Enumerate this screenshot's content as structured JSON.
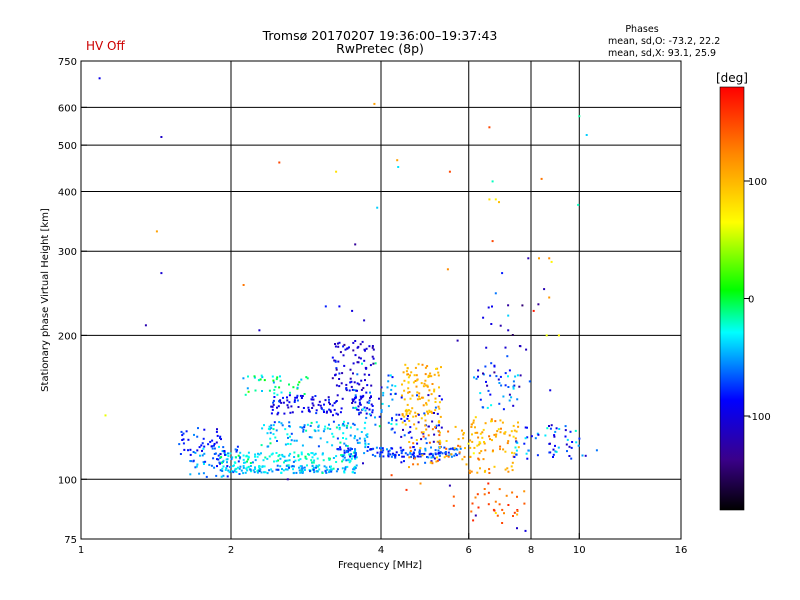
{
  "header": {
    "status": "HV Off",
    "status_color": "#cc0000",
    "title_line1": "Tromsø 20170207 19:36:00–19:37:43",
    "title_line2": "RwPretec (8p)",
    "stats_title": "Phases",
    "stats_o": "mean, sd,O: -73.2, 22.2",
    "stats_x": "mean, sd,X:  93.1, 25.9"
  },
  "colorbar": {
    "unit": "[deg]",
    "min": -180,
    "max": 180,
    "ticks": [
      {
        "value": 100,
        "label": "100"
      },
      {
        "value": 0,
        "label": "0"
      },
      {
        "value": -100,
        "label": "-100"
      }
    ]
  },
  "chart_data": {
    "type": "scatter",
    "title": "Tromsø 20170207 19:36:00–19:37:43",
    "subtitle": "RwPretec (8p)",
    "xlabel": "Frequency [MHz]",
    "ylabel": "Stationary phase Virtual Height [km]",
    "x_scale": "log",
    "y_scale": "log",
    "xlim": [
      1,
      16
    ],
    "ylim": [
      75,
      750
    ],
    "x_ticks": [
      {
        "value": 1,
        "label": "1"
      },
      {
        "value": 2,
        "label": "2"
      },
      {
        "value": 4,
        "label": "4"
      },
      {
        "value": 6,
        "label": "6"
      },
      {
        "value": 8,
        "label": "8"
      },
      {
        "value": 10,
        "label": "10"
      },
      {
        "value": 16,
        "label": "16"
      }
    ],
    "y_ticks": [
      {
        "value": 75,
        "label": "75"
      },
      {
        "value": 100,
        "label": "100"
      },
      {
        "value": 200,
        "label": "200"
      },
      {
        "value": 300,
        "label": "300"
      },
      {
        "value": 400,
        "label": "400"
      },
      {
        "value": 500,
        "label": "500"
      },
      {
        "value": 600,
        "label": "600"
      },
      {
        "value": 750,
        "label": "750"
      }
    ],
    "grid_x": [
      2,
      4,
      6,
      8,
      10
    ],
    "grid_y": [
      100,
      200,
      300,
      400,
      500,
      600
    ],
    "grid": true,
    "color_encoding": "phase_deg",
    "points": [
      [
        1.09,
        690,
        -95
      ],
      [
        1.45,
        520,
        -110
      ],
      [
        1.42,
        330,
        110
      ],
      [
        1.45,
        270,
        -105
      ],
      [
        1.35,
        210,
        -120
      ],
      [
        1.12,
        136,
        60
      ],
      [
        2.5,
        460,
        150
      ],
      [
        3.25,
        440,
        80
      ],
      [
        3.55,
        310,
        -130
      ],
      [
        3.88,
        610,
        110
      ],
      [
        3.93,
        370,
        -40
      ],
      [
        4.31,
        465,
        110
      ],
      [
        4.33,
        450,
        -35
      ],
      [
        5.5,
        440,
        150
      ],
      [
        5.45,
        275,
        120
      ],
      [
        6.6,
        545,
        150
      ],
      [
        6.7,
        420,
        -20
      ],
      [
        6.7,
        315,
        150
      ],
      [
        6.6,
        385,
        80
      ],
      [
        6.8,
        385,
        70
      ],
      [
        6.9,
        380,
        95
      ],
      [
        7.9,
        290,
        -120
      ],
      [
        8.3,
        290,
        110
      ],
      [
        8.7,
        290,
        120
      ],
      [
        8.8,
        285,
        70
      ],
      [
        8.4,
        425,
        130
      ],
      [
        10.0,
        575,
        -15
      ],
      [
        10.35,
        525,
        -40
      ],
      [
        9.95,
        375,
        -20
      ],
      [
        8.5,
        250,
        -120
      ],
      [
        8.7,
        240,
        115
      ],
      [
        7.0,
        270,
        -80
      ],
      [
        6.8,
        245,
        -60
      ],
      [
        7.2,
        220,
        -40
      ],
      [
        8.1,
        225,
        170
      ],
      [
        8.6,
        200,
        60
      ],
      [
        9.1,
        200,
        70
      ],
      [
        2.12,
        255,
        130
      ],
      [
        2.28,
        205,
        -110
      ],
      [
        3.1,
        230,
        -80
      ],
      [
        3.3,
        230,
        -90
      ],
      [
        3.5,
        225,
        -100
      ],
      [
        3.7,
        215,
        -110
      ],
      [
        5.7,
        195,
        -120
      ],
      [
        7.6,
        190,
        -130
      ],
      [
        2.6,
        100,
        -120
      ],
      [
        3.68,
        108,
        -110
      ],
      [
        4.2,
        102,
        150
      ],
      [
        4.5,
        95,
        160
      ],
      [
        4.8,
        98,
        120
      ],
      [
        5.6,
        92,
        140
      ],
      [
        5.6,
        88,
        150
      ],
      [
        6.2,
        84,
        -120
      ],
      [
        6.8,
        85,
        80
      ],
      [
        7.0,
        81,
        150
      ],
      [
        7.5,
        79,
        -110
      ],
      [
        7.8,
        78,
        -100
      ],
      [
        5.5,
        97,
        -120
      ],
      [
        10.3,
        112,
        -110
      ],
      [
        10.85,
        115,
        -60
      ]
    ],
    "clusters": [
      {
        "x0": 1.9,
        "x1": 3.6,
        "h0": 103,
        "h1": 107,
        "n": 150,
        "phase": -45,
        "spread": 35
      },
      {
        "x0": 1.9,
        "x1": 3.6,
        "h0": 108,
        "h1": 114,
        "n": 120,
        "phase": -30,
        "spread": 35
      },
      {
        "x0": 3.2,
        "x1": 5.8,
        "h0": 111,
        "h1": 117,
        "n": 140,
        "phase": -70,
        "spread": 30
      },
      {
        "x0": 1.65,
        "x1": 2.1,
        "h0": 101,
        "h1": 118,
        "n": 60,
        "phase": -60,
        "spread": 35
      },
      {
        "x0": 1.55,
        "x1": 1.95,
        "h0": 111,
        "h1": 128,
        "n": 40,
        "phase": -80,
        "spread": 30
      },
      {
        "x0": 2.3,
        "x1": 3.8,
        "h0": 117,
        "h1": 132,
        "n": 110,
        "phase": -45,
        "spread": 40
      },
      {
        "x0": 2.4,
        "x1": 3.9,
        "h0": 136,
        "h1": 150,
        "n": 120,
        "phase": -95,
        "spread": 35
      },
      {
        "x0": 2.1,
        "x1": 2.9,
        "h0": 150,
        "h1": 165,
        "n": 40,
        "phase": -15,
        "spread": 45
      },
      {
        "x0": 3.2,
        "x1": 3.9,
        "h0": 152,
        "h1": 195,
        "n": 80,
        "phase": -105,
        "spread": 35
      },
      {
        "x0": 3.5,
        "x1": 4.3,
        "h0": 128,
        "h1": 175,
        "n": 50,
        "phase": -60,
        "spread": 60
      },
      {
        "x0": 4.4,
        "x1": 5.3,
        "h0": 130,
        "h1": 175,
        "n": 110,
        "phase": 100,
        "spread": 25
      },
      {
        "x0": 4.2,
        "x1": 5.3,
        "h0": 108,
        "h1": 150,
        "n": 60,
        "phase": -85,
        "spread": 40
      },
      {
        "x0": 4.5,
        "x1": 6.4,
        "h0": 106,
        "h1": 130,
        "n": 70,
        "phase": 110,
        "spread": 50
      },
      {
        "x0": 6.0,
        "x1": 7.6,
        "h0": 103,
        "h1": 135,
        "n": 80,
        "phase": 105,
        "spread": 35
      },
      {
        "x0": 6.1,
        "x1": 7.6,
        "h0": 140,
        "h1": 175,
        "n": 40,
        "phase": -60,
        "spread": 60
      },
      {
        "x0": 7.4,
        "x1": 10.2,
        "h0": 110,
        "h1": 130,
        "n": 60,
        "phase": -70,
        "spread": 60
      },
      {
        "x0": 6.0,
        "x1": 7.8,
        "h0": 82,
        "h1": 98,
        "n": 30,
        "phase": 140,
        "spread": 40
      },
      {
        "x0": 6.4,
        "x1": 8.8,
        "h0": 150,
        "h1": 235,
        "n": 25,
        "phase": -110,
        "spread": 60
      }
    ]
  }
}
